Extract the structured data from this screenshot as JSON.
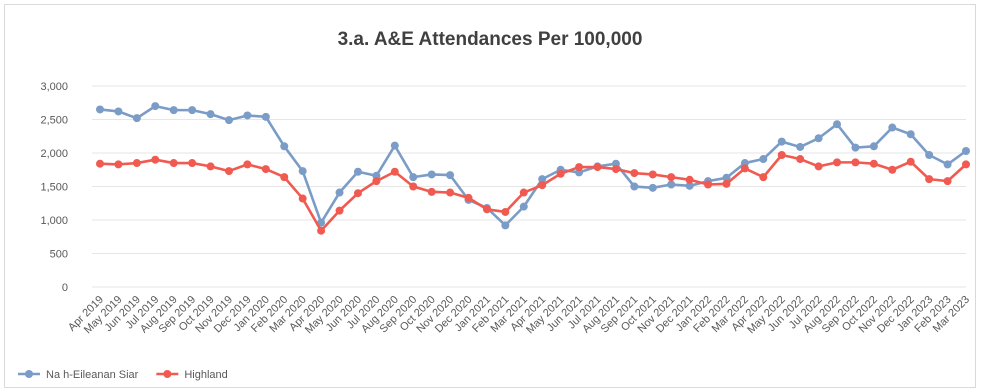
{
  "chart_data": {
    "type": "line",
    "title": "3.a. A&E Attendances Per 100,000",
    "xlabel": "",
    "ylabel": "",
    "ylim": [
      0,
      3000
    ],
    "yticks": [
      "3,000",
      "2,500",
      "2,000",
      "1,500",
      "1,000",
      "500",
      "0"
    ],
    "grid": "horizontal",
    "legend_position": "bottom-left",
    "categories": [
      "Apr 2019",
      "May 2019",
      "Jun 2019",
      "Jul 2019",
      "Aug 2019",
      "Sep 2019",
      "Oct 2019",
      "Nov 2019",
      "Dec 2019",
      "Jan 2020",
      "Feb 2020",
      "Mar 2020",
      "Apr 2020",
      "May 2020",
      "Jun 2020",
      "Jul 2020",
      "Aug 2020",
      "Sep 2020",
      "Oct 2020",
      "Nov 2020",
      "Dec 2020",
      "Jan 2021",
      "Feb 2021",
      "Mar 2021",
      "Apr 2021",
      "May 2021",
      "Jun 2021",
      "Jul 2021",
      "Aug 2021",
      "Sep 2021",
      "Oct 2021",
      "Nov 2021",
      "Dec 2021",
      "Jan 2022",
      "Feb 2022",
      "Mar 2022",
      "Apr 2022",
      "May 2022",
      "Jun 2022",
      "Jul 2022",
      "Aug 2022",
      "Sep 2022",
      "Oct 2022",
      "Nov 2022",
      "Dec 2022",
      "Jan 2023",
      "Feb 2023",
      "Mar 2023"
    ],
    "series": [
      {
        "name": "Na h-Eileanan Siar",
        "color": "#7a9cc6",
        "values": [
          2650,
          2620,
          2520,
          2700,
          2640,
          2640,
          2580,
          2490,
          2560,
          2540,
          2100,
          1730,
          960,
          1410,
          1720,
          1660,
          2110,
          1640,
          1680,
          1670,
          1300,
          1180,
          920,
          1200,
          1610,
          1750,
          1710,
          1800,
          1840,
          1500,
          1480,
          1530,
          1510,
          1580,
          1630,
          1850,
          1910,
          2170,
          2090,
          2220,
          2430,
          2080,
          2100,
          2380,
          2280,
          1970,
          1830,
          2030
        ]
      },
      {
        "name": "Highland",
        "color": "#f05a50",
        "values": [
          1840,
          1830,
          1850,
          1900,
          1850,
          1850,
          1800,
          1730,
          1830,
          1760,
          1640,
          1320,
          840,
          1140,
          1400,
          1580,
          1720,
          1500,
          1420,
          1410,
          1330,
          1160,
          1120,
          1410,
          1520,
          1690,
          1790,
          1790,
          1760,
          1700,
          1680,
          1640,
          1600,
          1530,
          1540,
          1770,
          1640,
          1970,
          1910,
          1800,
          1860,
          1860,
          1840,
          1750,
          1870,
          1610,
          1580,
          1830
        ]
      }
    ]
  }
}
